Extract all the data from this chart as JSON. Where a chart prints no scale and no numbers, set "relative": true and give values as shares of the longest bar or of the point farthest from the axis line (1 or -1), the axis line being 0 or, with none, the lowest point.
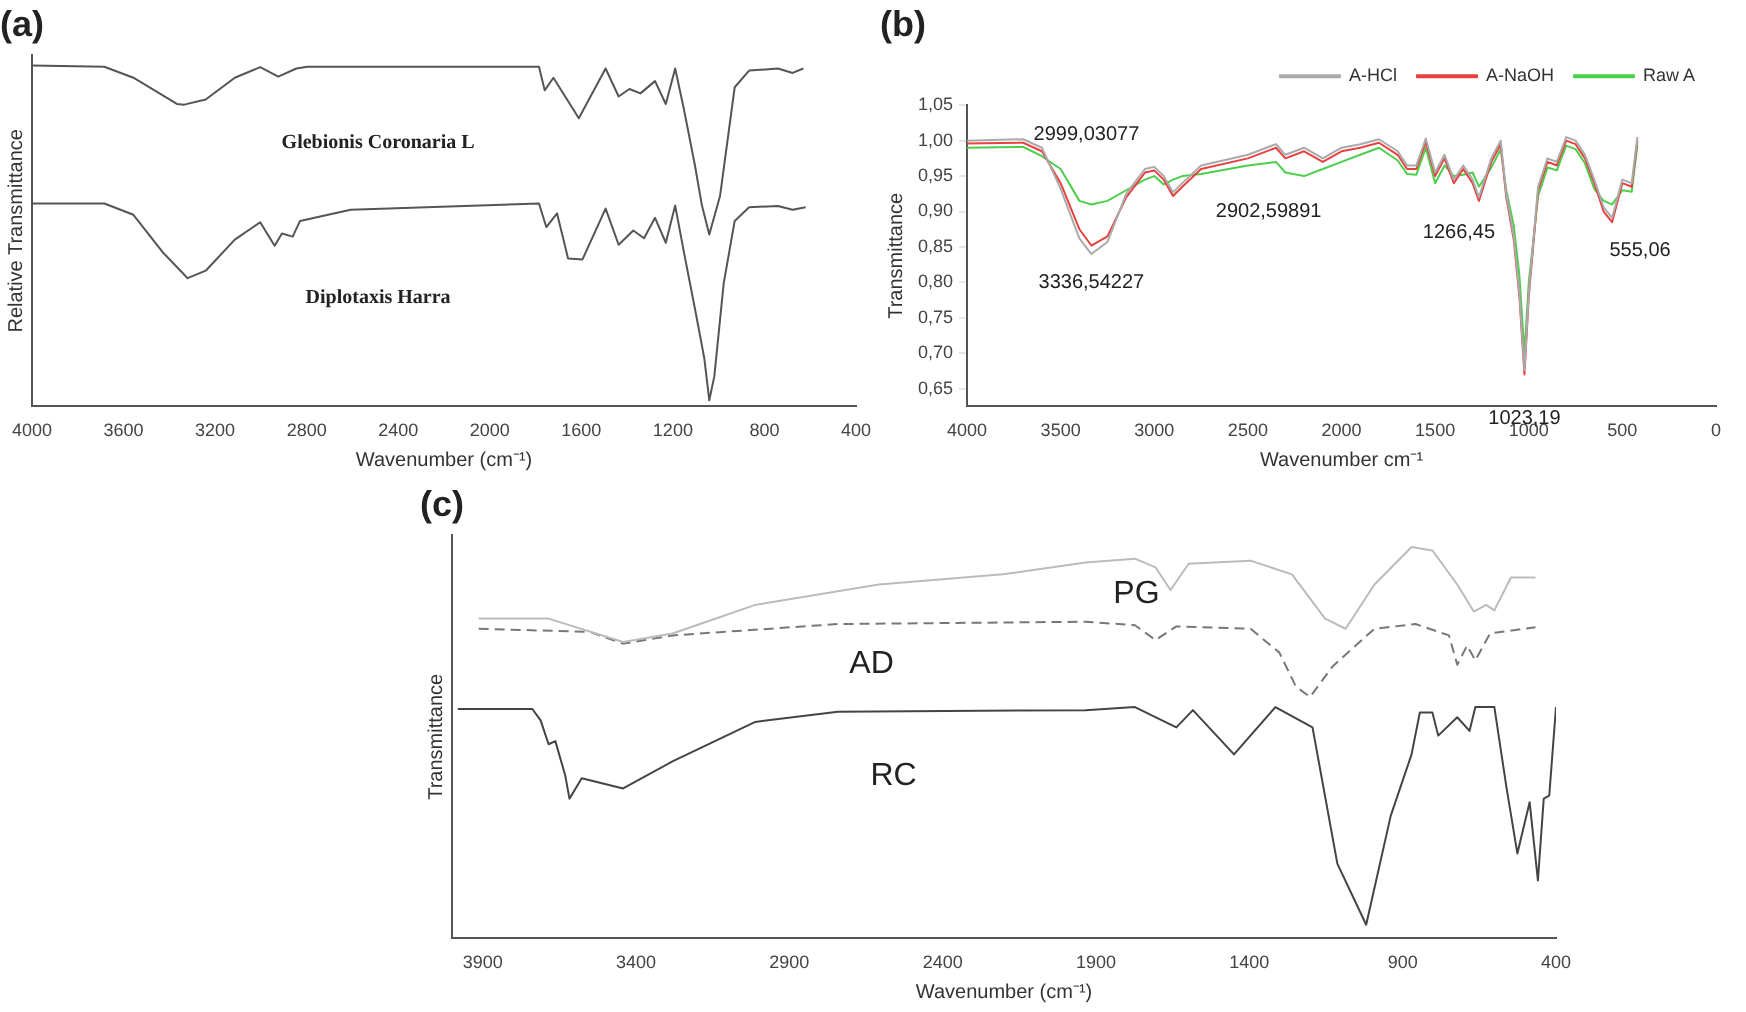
{
  "chart_data": [
    {
      "type": "line",
      "title": "(a)",
      "xlabel": "Wavenumber (cm⁻¹)",
      "ylabel": "Relative Transmittance",
      "relative": true,
      "xlim": [
        4000,
        400
      ],
      "xticks": [
        4000,
        3600,
        3200,
        2800,
        2400,
        2000,
        1600,
        1200,
        800,
        400
      ],
      "tick_labels": "x",
      "legend": false,
      "grid": false,
      "series": [
        {
          "name": "Glebionis Coronaria L",
          "color": "#555555",
          "x": [
            4000,
            3684,
            3557,
            3367,
            3335,
            3241,
            3114,
            3003,
            2924,
            2845,
            2797,
            1785,
            1760,
            1722,
            1611,
            1494,
            1437,
            1390,
            1342,
            1278,
            1231,
            1190,
            1152,
            1104,
            1073,
            1041,
            994,
            930,
            867,
            741,
            677,
            630
          ],
          "values": [
            1.0,
            0.996,
            0.964,
            0.887,
            0.885,
            0.9,
            0.964,
            0.995,
            0.967,
            0.991,
            0.996,
            0.996,
            0.927,
            0.964,
            0.845,
            0.991,
            0.909,
            0.931,
            0.918,
            0.954,
            0.887,
            0.991,
            0.872,
            0.708,
            0.589,
            0.504,
            0.617,
            0.936,
            0.985,
            0.991,
            0.978,
            0.991
          ]
        },
        {
          "name": "Diplotaxis Harra",
          "color": "#555555",
          "x": [
            4000,
            3684,
            3557,
            3430,
            3320,
            3241,
            3114,
            3003,
            2940,
            2908,
            2861,
            2829,
            2608,
            1785,
            1753,
            1706,
            1658,
            1595,
            1494,
            1437,
            1373,
            1326,
            1278,
            1231,
            1190,
            1152,
            1104,
            1063,
            1041,
            1019,
            978,
            930,
            867,
            741,
            677,
            620
          ],
          "values": [
            0.595,
            0.595,
            0.562,
            0.453,
            0.376,
            0.398,
            0.489,
            0.54,
            0.471,
            0.507,
            0.498,
            0.544,
            0.577,
            0.595,
            0.526,
            0.566,
            0.434,
            0.431,
            0.58,
            0.474,
            0.516,
            0.493,
            0.553,
            0.48,
            0.589,
            0.453,
            0.288,
            0.142,
            0.018,
            0.088,
            0.361,
            0.544,
            0.584,
            0.588,
            0.577,
            0.584
          ]
        }
      ]
    },
    {
      "type": "line",
      "title": "(b)",
      "xlabel": "Wavenumber cm⁻¹",
      "ylabel": "Transmittance",
      "xlim": [
        4000,
        0
      ],
      "xticks": [
        4000,
        3500,
        3000,
        2500,
        2000,
        1500,
        1000,
        500,
        0
      ],
      "ylim": [
        0.625,
        1.05
      ],
      "yticks": [
        {
          "value": 0.65,
          "label": "0,65"
        },
        {
          "value": 0.7,
          "label": "0,70"
        },
        {
          "value": 0.75,
          "label": "0,75"
        },
        {
          "value": 0.8,
          "label": "0,80"
        },
        {
          "value": 0.85,
          "label": "0,85"
        },
        {
          "value": 0.9,
          "label": "0,90"
        },
        {
          "value": 0.95,
          "label": "0,95"
        },
        {
          "value": 1.0,
          "label": "1,00"
        },
        {
          "value": 1.05,
          "label": "1,05"
        }
      ],
      "legend": "top right",
      "grid": false,
      "annotations": [
        {
          "text": "3336,54227",
          "x": 3336,
          "y": 0.84
        },
        {
          "text": "2999,03077",
          "x": 2999,
          "y": 0.958
        },
        {
          "text": "2902,59891",
          "x": 2902,
          "y": 0.922
        },
        {
          "text": "1266,45",
          "x": 1266,
          "y": 0.915
        },
        {
          "text": "1023,19",
          "x": 1023,
          "y": 0.67
        },
        {
          "text": "555,06",
          "x": 555,
          "y": 0.885
        }
      ],
      "series": [
        {
          "name": "A-HCl",
          "color": "#aaaaaa",
          "x": [
            4000,
            3700,
            3600,
            3500,
            3400,
            3336,
            3250,
            3150,
            3050,
            3000,
            2950,
            2900,
            2850,
            2750,
            2500,
            2350,
            2300,
            2200,
            2100,
            2000,
            1900,
            1800,
            1700,
            1650,
            1600,
            1550,
            1500,
            1450,
            1400,
            1350,
            1300,
            1266,
            1200,
            1150,
            1120,
            1080,
            1050,
            1023,
            1000,
            950,
            900,
            850,
            800,
            750,
            700,
            650,
            600,
            555,
            500,
            450,
            420
          ],
          "values": [
            1.0,
            1.002,
            0.99,
            0.932,
            0.862,
            0.84,
            0.857,
            0.925,
            0.96,
            0.963,
            0.95,
            0.927,
            0.94,
            0.965,
            0.98,
            0.995,
            0.98,
            0.99,
            0.975,
            0.99,
            0.995,
            1.002,
            0.985,
            0.965,
            0.965,
            1.003,
            0.955,
            0.98,
            0.945,
            0.965,
            0.945,
            0.92,
            0.975,
            1.0,
            0.925,
            0.865,
            0.785,
            0.676,
            0.785,
            0.935,
            0.975,
            0.97,
            1.005,
            1.0,
            0.98,
            0.945,
            0.906,
            0.891,
            0.945,
            0.94,
            1.005
          ]
        },
        {
          "name": "A-NaOH",
          "color": "#e8413f",
          "x": [
            4000,
            3700,
            3600,
            3500,
            3400,
            3336,
            3250,
            3150,
            3050,
            3000,
            2950,
            2900,
            2850,
            2750,
            2500,
            2350,
            2300,
            2200,
            2100,
            2000,
            1900,
            1800,
            1700,
            1650,
            1600,
            1550,
            1500,
            1450,
            1400,
            1350,
            1300,
            1266,
            1200,
            1150,
            1120,
            1080,
            1050,
            1023,
            1000,
            950,
            900,
            850,
            800,
            750,
            700,
            650,
            600,
            555,
            500,
            450,
            420
          ],
          "values": [
            0.996,
            0.997,
            0.985,
            0.94,
            0.875,
            0.852,
            0.865,
            0.92,
            0.955,
            0.958,
            0.945,
            0.922,
            0.935,
            0.96,
            0.975,
            0.99,
            0.975,
            0.985,
            0.97,
            0.985,
            0.99,
            0.997,
            0.98,
            0.96,
            0.96,
            0.998,
            0.95,
            0.975,
            0.94,
            0.96,
            0.94,
            0.915,
            0.97,
            0.995,
            0.92,
            0.86,
            0.78,
            0.67,
            0.78,
            0.93,
            0.97,
            0.965,
            1.0,
            0.995,
            0.975,
            0.94,
            0.9,
            0.885,
            0.94,
            0.935,
            1.0
          ]
        },
        {
          "name": "Raw A",
          "color": "#4ccf4c",
          "x": [
            4000,
            3700,
            3600,
            3500,
            3400,
            3336,
            3250,
            3150,
            3050,
            3000,
            2950,
            2900,
            2850,
            2750,
            2500,
            2350,
            2300,
            2200,
            2100,
            2000,
            1900,
            1800,
            1700,
            1650,
            1600,
            1550,
            1500,
            1450,
            1400,
            1350,
            1300,
            1266,
            1200,
            1150,
            1120,
            1080,
            1050,
            1023,
            1000,
            950,
            900,
            850,
            800,
            750,
            700,
            650,
            600,
            555,
            500,
            450,
            420
          ],
          "values": [
            0.99,
            0.991,
            0.978,
            0.96,
            0.915,
            0.91,
            0.915,
            0.93,
            0.945,
            0.95,
            0.938,
            0.945,
            0.95,
            0.953,
            0.965,
            0.97,
            0.955,
            0.95,
            0.96,
            0.97,
            0.98,
            0.99,
            0.972,
            0.953,
            0.952,
            0.99,
            0.94,
            0.965,
            0.95,
            0.952,
            0.955,
            0.935,
            0.962,
            0.988,
            0.93,
            0.88,
            0.81,
            0.7,
            0.8,
            0.922,
            0.962,
            0.958,
            0.993,
            0.988,
            0.968,
            0.932,
            0.915,
            0.91,
            0.93,
            0.928,
            0.993
          ]
        }
      ]
    },
    {
      "type": "line",
      "title": "(c)",
      "xlabel": "Wavenumber (cm⁻¹)",
      "ylabel": "Transmittance",
      "relative": true,
      "xlim": [
        4000,
        400
      ],
      "xticks": [
        3900,
        3400,
        2900,
        2400,
        1900,
        1400,
        900,
        400
      ],
      "tick_labels": "x",
      "legend": false,
      "grid": false,
      "series": [
        {
          "name": "PG",
          "color": "#bbbbbb",
          "x": [
            3913,
            3685,
            3442,
            3281,
            3011,
            2608,
            2204,
            1934,
            1773,
            1706,
            1657,
            1598,
            1396,
            1261,
            1153,
            1086,
            992,
            871,
            803,
            722,
            668,
            628,
            601,
            547,
            467
          ],
          "values": [
            0.817,
            0.817,
            0.757,
            0.779,
            0.852,
            0.904,
            0.93,
            0.96,
            0.97,
            0.948,
            0.89,
            0.957,
            0.965,
            0.93,
            0.817,
            0.791,
            0.904,
            1.0,
            0.991,
            0.904,
            0.835,
            0.852,
            0.838,
            0.922,
            0.922
          ]
        },
        {
          "name": "AD",
          "color": "#777777",
          "line_style": "dashed",
          "x": [
            3913,
            3550,
            3442,
            3281,
            2742,
            1934,
            1773,
            1706,
            1638,
            1396,
            1302,
            1248,
            1202,
            1127,
            992,
            858,
            749,
            722,
            690,
            663,
            615,
            467
          ],
          "values": [
            0.791,
            0.783,
            0.753,
            0.774,
            0.803,
            0.809,
            0.8,
            0.762,
            0.797,
            0.791,
            0.73,
            0.643,
            0.617,
            0.696,
            0.791,
            0.803,
            0.774,
            0.699,
            0.748,
            0.71,
            0.779,
            0.795
          ]
        },
        {
          "name": "RC",
          "color": "#444444",
          "x": [
            3981,
            3738,
            3711,
            3685,
            3663,
            3631,
            3617,
            3577,
            3442,
            3281,
            3011,
            2742,
            1934,
            1773,
            1638,
            1584,
            1450,
            1315,
            1194,
            1113,
            1019,
            939,
            871,
            844,
            803,
            784,
            722,
            682,
            663,
            601,
            561,
            526,
            486,
            459,
            440,
            422,
            400
          ],
          "values": [
            0.586,
            0.586,
            0.557,
            0.496,
            0.504,
            0.417,
            0.357,
            0.409,
            0.383,
            0.452,
            0.553,
            0.579,
            0.583,
            0.591,
            0.539,
            0.583,
            0.47,
            0.591,
            0.539,
            0.191,
            0.035,
            0.313,
            0.47,
            0.577,
            0.577,
            0.518,
            0.565,
            0.53,
            0.591,
            0.591,
            0.383,
            0.217,
            0.348,
            0.148,
            0.357,
            0.365,
            0.591
          ]
        }
      ]
    }
  ]
}
